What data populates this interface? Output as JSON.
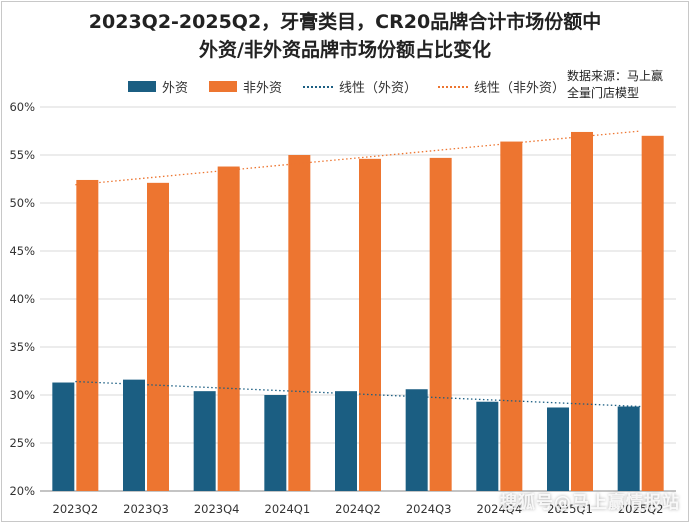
{
  "title_line1": "2023Q2-2025Q2，牙膏类目，CR20品牌合计市场份额中",
  "title_line2": "外资/非外资品牌市场份额占比变化",
  "source_line1": "数据来源：马上赢",
  "source_line2": "全量门店模型",
  "watermark": "搜狐号@马上赢情报站",
  "colors": {
    "foreign": "#1b5e82",
    "domestic": "#ed7530"
  },
  "chart_data": {
    "type": "bar",
    "categories": [
      "2023Q2",
      "2023Q3",
      "2023Q4",
      "2024Q1",
      "2024Q2",
      "2024Q3",
      "2024Q4",
      "2025Q1",
      "2025Q2"
    ],
    "series": [
      {
        "name": "外资",
        "values": [
          31.3,
          31.6,
          30.4,
          30.0,
          30.4,
          30.6,
          29.3,
          28.7,
          28.8
        ]
      },
      {
        "name": "非外资",
        "values": [
          52.4,
          52.1,
          53.8,
          55.0,
          54.6,
          54.7,
          56.4,
          57.4,
          57.0
        ]
      }
    ],
    "trendlines": [
      {
        "name": "线性（外资）",
        "series": "外资",
        "start": 31.4,
        "end": 28.8
      },
      {
        "name": "线性（非外资）",
        "series": "非外资",
        "start": 51.9,
        "end": 57.5
      }
    ],
    "ylim": [
      20,
      60
    ],
    "yticks": [
      "20%",
      "25%",
      "30%",
      "35%",
      "40%",
      "45%",
      "50%",
      "55%",
      "60%"
    ],
    "ytick_values": [
      20,
      25,
      30,
      35,
      40,
      45,
      50,
      55,
      60
    ],
    "legend": [
      "外资",
      "非外资",
      "线性（外资）",
      "线性（非外资）"
    ]
  }
}
